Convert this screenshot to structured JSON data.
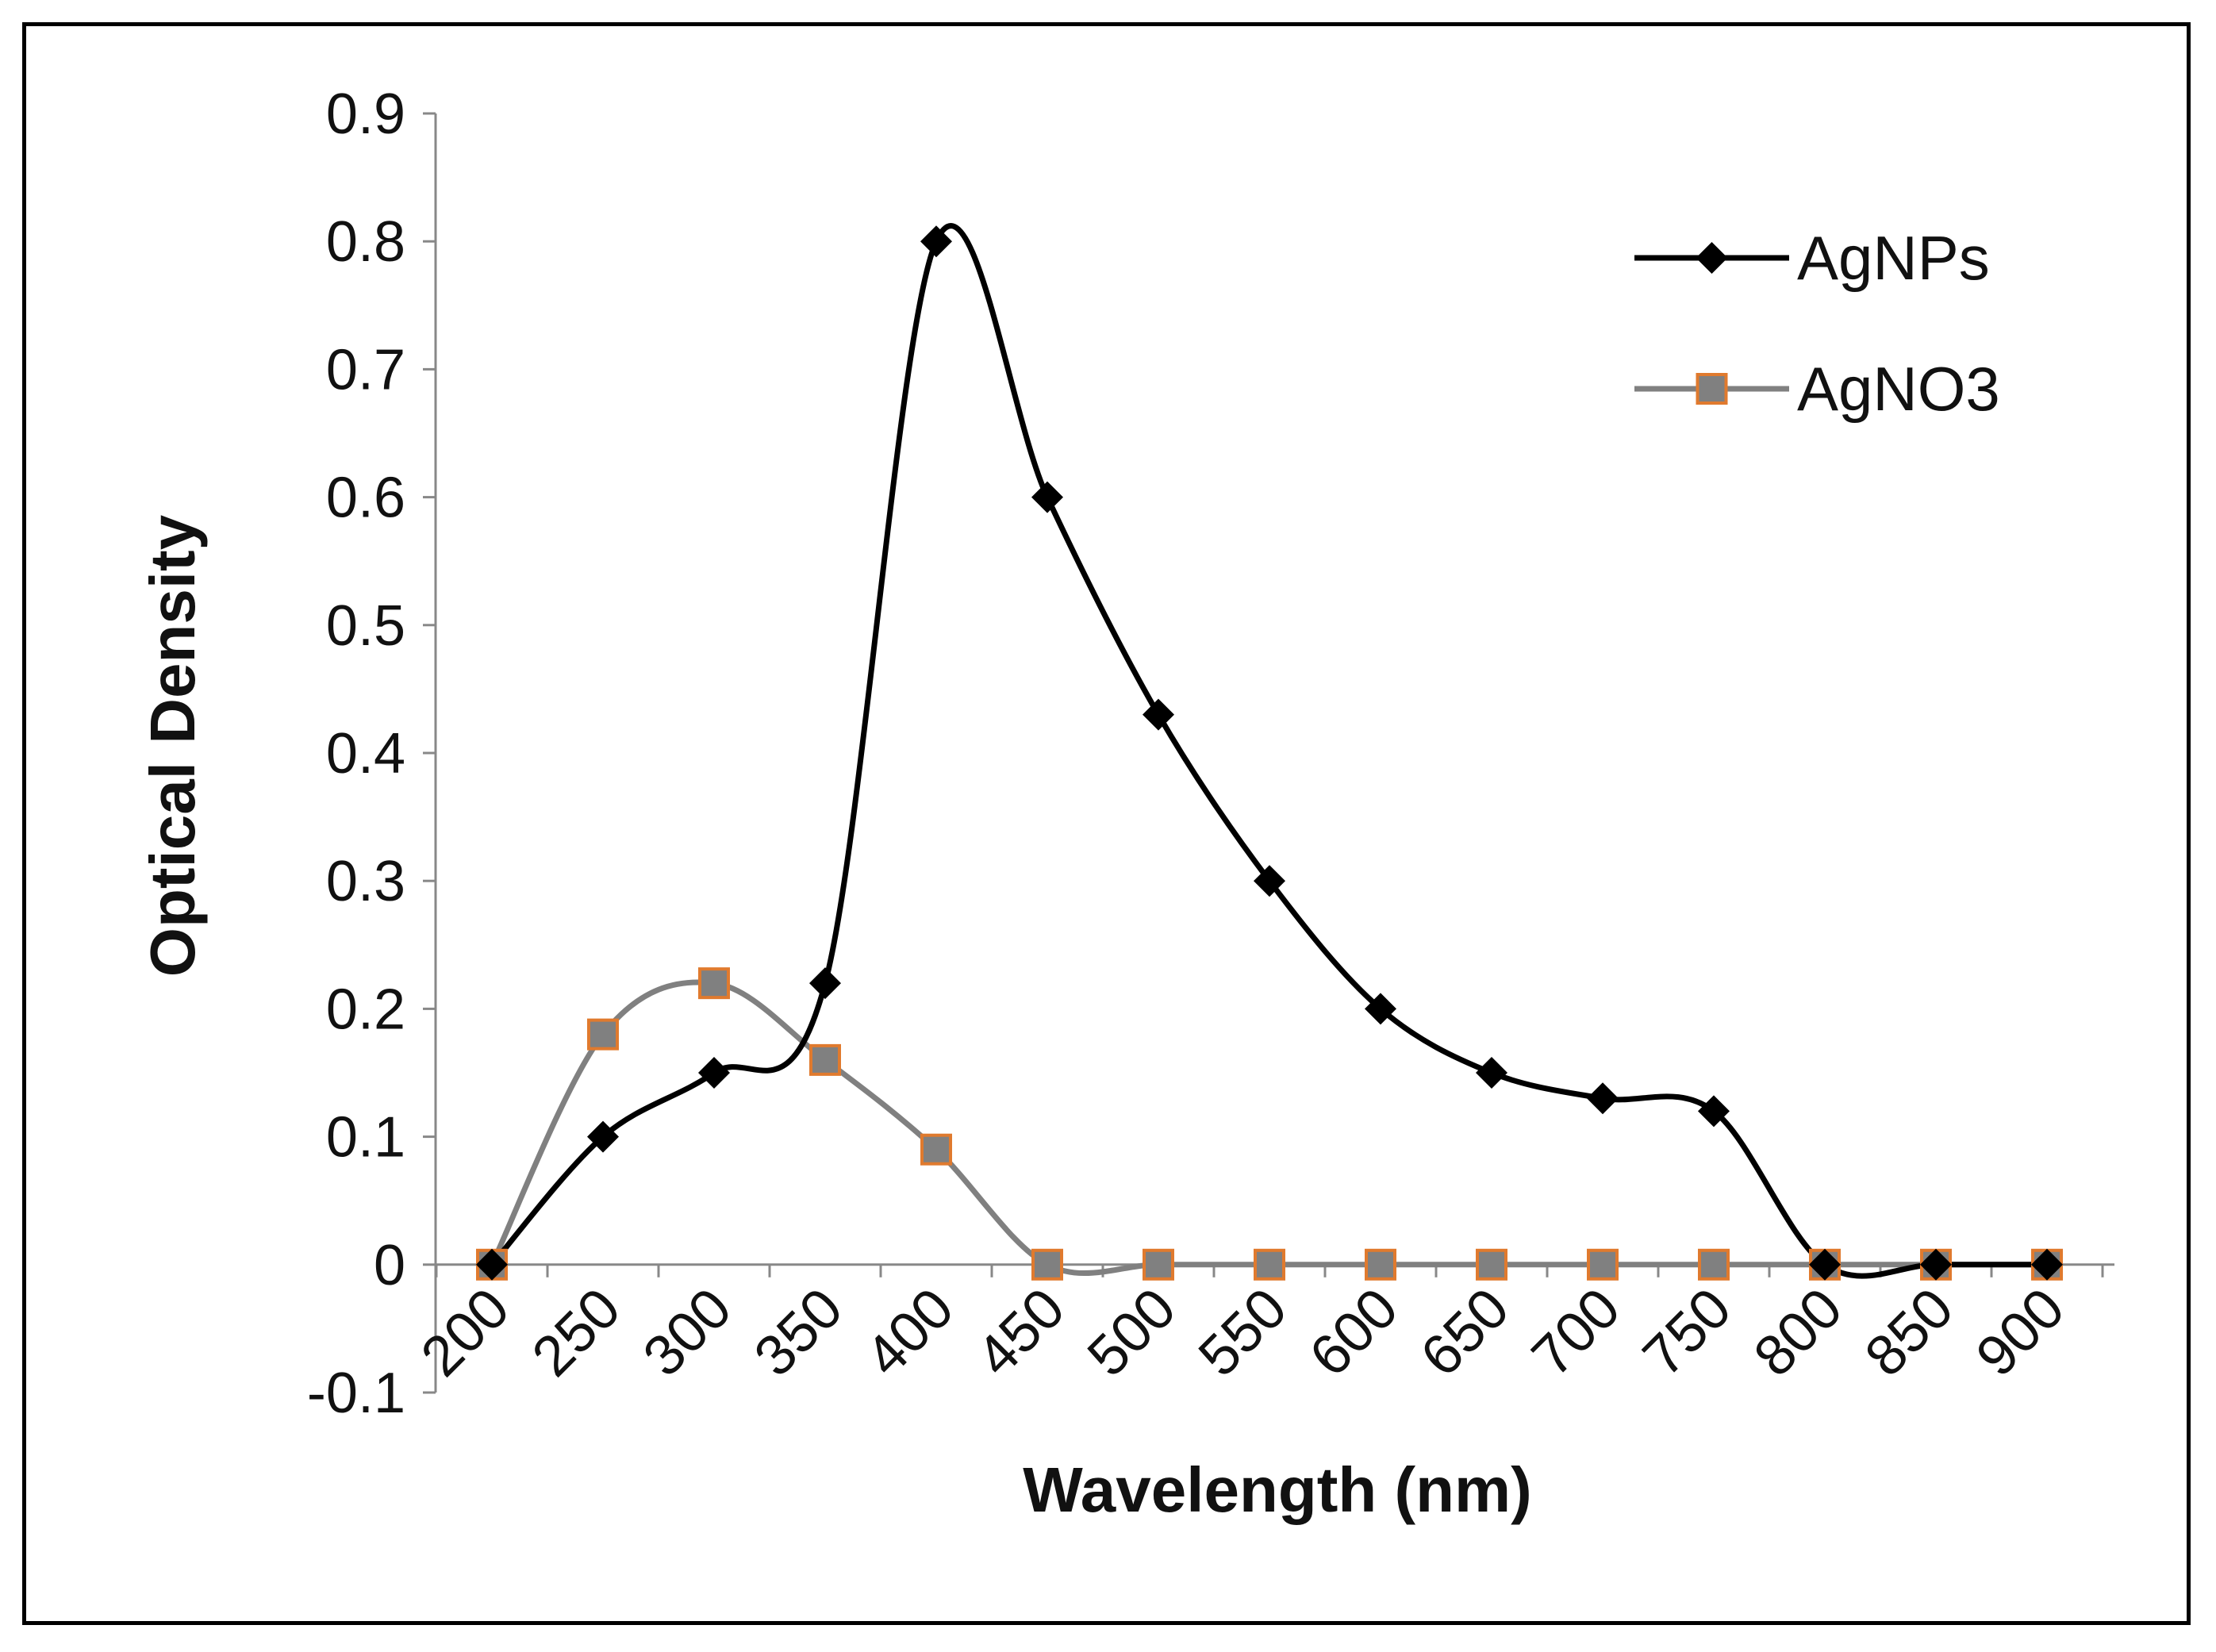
{
  "chart_data": {
    "type": "line",
    "title": "",
    "xlabel": "Wavelength (nm)",
    "ylabel": "Optical Density",
    "x": [
      200,
      250,
      300,
      350,
      400,
      450,
      500,
      550,
      600,
      650,
      700,
      750,
      800,
      850,
      900
    ],
    "x_ticks": [
      "200",
      "250",
      "300",
      "350",
      "400",
      "450",
      "500",
      "550",
      "600",
      "650",
      "700",
      "750",
      "800",
      "850",
      "900"
    ],
    "y_ticks": [
      "-0.1",
      "0",
      "0.1",
      "0.2",
      "0.3",
      "0.4",
      "0.5",
      "0.6",
      "0.7",
      "0.8",
      "0.9"
    ],
    "ylim": [
      -0.1,
      0.9
    ],
    "grid": false,
    "legend_position": "top-right",
    "series": [
      {
        "name": "AgNPs",
        "values": [
          0,
          0.1,
          0.15,
          0.22,
          0.8,
          0.6,
          0.43,
          0.3,
          0.2,
          0.15,
          0.13,
          0.12,
          0,
          0,
          0
        ],
        "color": "#000000",
        "marker": "diamond"
      },
      {
        "name": "AgNO3",
        "values": [
          0,
          0.18,
          0.22,
          0.16,
          0.09,
          0,
          0,
          0,
          0,
          0,
          0,
          0,
          0,
          0,
          0
        ],
        "color": "#808080",
        "marker_fill": "#808080",
        "marker_edge": "#E07A2E",
        "marker": "square"
      }
    ]
  }
}
